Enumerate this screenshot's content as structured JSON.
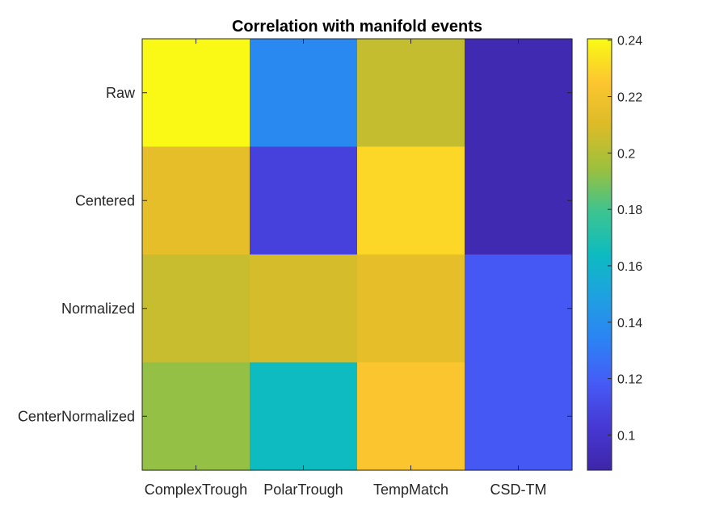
{
  "chart_data": {
    "type": "heatmap",
    "title": "Correlation with manifold events",
    "x_categories": [
      "ComplexTrough",
      "PolarTrough",
      "TempMatch",
      "CSD-TM"
    ],
    "y_categories": [
      "Raw",
      "Centered",
      "Normalized",
      "CenterNormalized"
    ],
    "values": [
      [
        0.24,
        0.137,
        0.204,
        0.091
      ],
      [
        0.214,
        0.107,
        0.23,
        0.091
      ],
      [
        0.205,
        0.208,
        0.214,
        0.117
      ],
      [
        0.193,
        0.164,
        0.224,
        0.117
      ]
    ],
    "colorbar": {
      "range": [
        0.0875,
        0.2405
      ],
      "ticks": [
        0.1,
        0.12,
        0.14,
        0.16,
        0.18,
        0.2,
        0.22,
        0.24
      ],
      "tick_labels": [
        "0.1",
        "0.12",
        "0.14",
        "0.16",
        "0.18",
        "0.2",
        "0.22",
        "0.24"
      ],
      "colormap": "parula"
    },
    "xlabel": "",
    "ylabel": ""
  }
}
